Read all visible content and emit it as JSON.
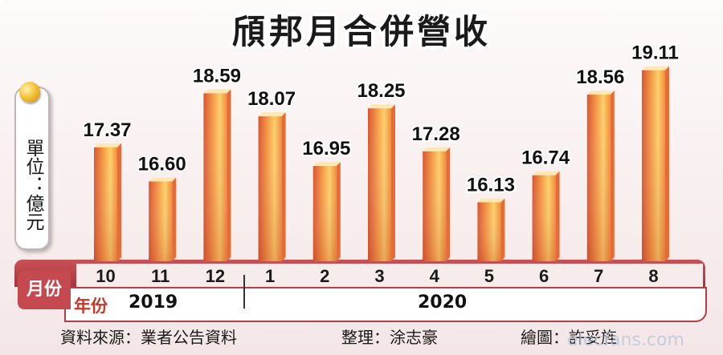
{
  "title": "頎邦月合併營收",
  "unit_label": "單位：億元",
  "chart_data": {
    "type": "bar",
    "title": "頎邦月合併營收",
    "ylabel": "單位：億元",
    "xlabel": "月份",
    "categories": [
      "10",
      "11",
      "12",
      "1",
      "2",
      "3",
      "4",
      "5",
      "6",
      "7",
      "8"
    ],
    "values": [
      17.37,
      16.6,
      18.59,
      18.07,
      16.95,
      18.25,
      17.28,
      16.13,
      16.74,
      18.56,
      19.11
    ],
    "value_labels": [
      "17.37",
      "16.60",
      "18.59",
      "18.07",
      "16.95",
      "18.25",
      "17.28",
      "16.13",
      "16.74",
      "18.56",
      "19.11"
    ],
    "ylim": [
      14.8,
      19.3
    ],
    "years": [
      {
        "label": "2019",
        "months": [
          "10",
          "11",
          "12"
        ]
      },
      {
        "label": "2020",
        "months": [
          "1",
          "2",
          "3",
          "4",
          "5",
          "6",
          "7",
          "8"
        ]
      }
    ],
    "grid": false,
    "colors": {
      "bar_light": "#fbd06a",
      "bar_mid": "#f28a3a",
      "bar_dark": "#d9542e"
    }
  },
  "axis": {
    "month_label": "月份",
    "year_label": "年份",
    "year_2019": "2019",
    "year_2020": "2020"
  },
  "footer": {
    "source": "資料來源：業者公告資料",
    "editor": "整理：涂志豪",
    "artist": "繪圖：許妥旌"
  },
  "watermark": "elecfans.com"
}
